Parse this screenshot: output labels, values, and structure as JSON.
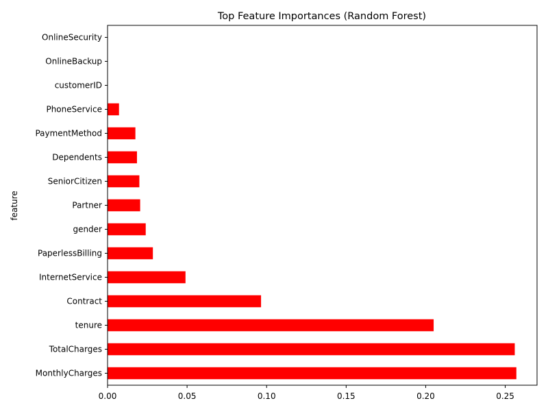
{
  "chart_data": {
    "type": "bar",
    "orientation": "horizontal",
    "title": "Top Feature Importances (Random Forest)",
    "xlabel": "",
    "ylabel": "feature",
    "xlim": [
      0,
      0.27
    ],
    "xticks": [
      0.0,
      0.05,
      0.1,
      0.15,
      0.2,
      0.25
    ],
    "xtick_labels": [
      "0.00",
      "0.05",
      "0.10",
      "0.15",
      "0.20",
      "0.25"
    ],
    "bar_color": "#ff0000",
    "grid": false,
    "categories": [
      "MonthlyCharges",
      "TotalCharges",
      "tenure",
      "Contract",
      "InternetService",
      "PaperlessBilling",
      "gender",
      "Partner",
      "SeniorCitizen",
      "Dependents",
      "PaymentMethod",
      "PhoneService",
      "customerID",
      "OnlineBackup",
      "OnlineSecurity"
    ],
    "values": [
      0.257,
      0.256,
      0.205,
      0.0965,
      0.049,
      0.0285,
      0.024,
      0.0205,
      0.02,
      0.0185,
      0.0175,
      0.0072,
      0.0,
      0.0,
      0.0
    ]
  }
}
